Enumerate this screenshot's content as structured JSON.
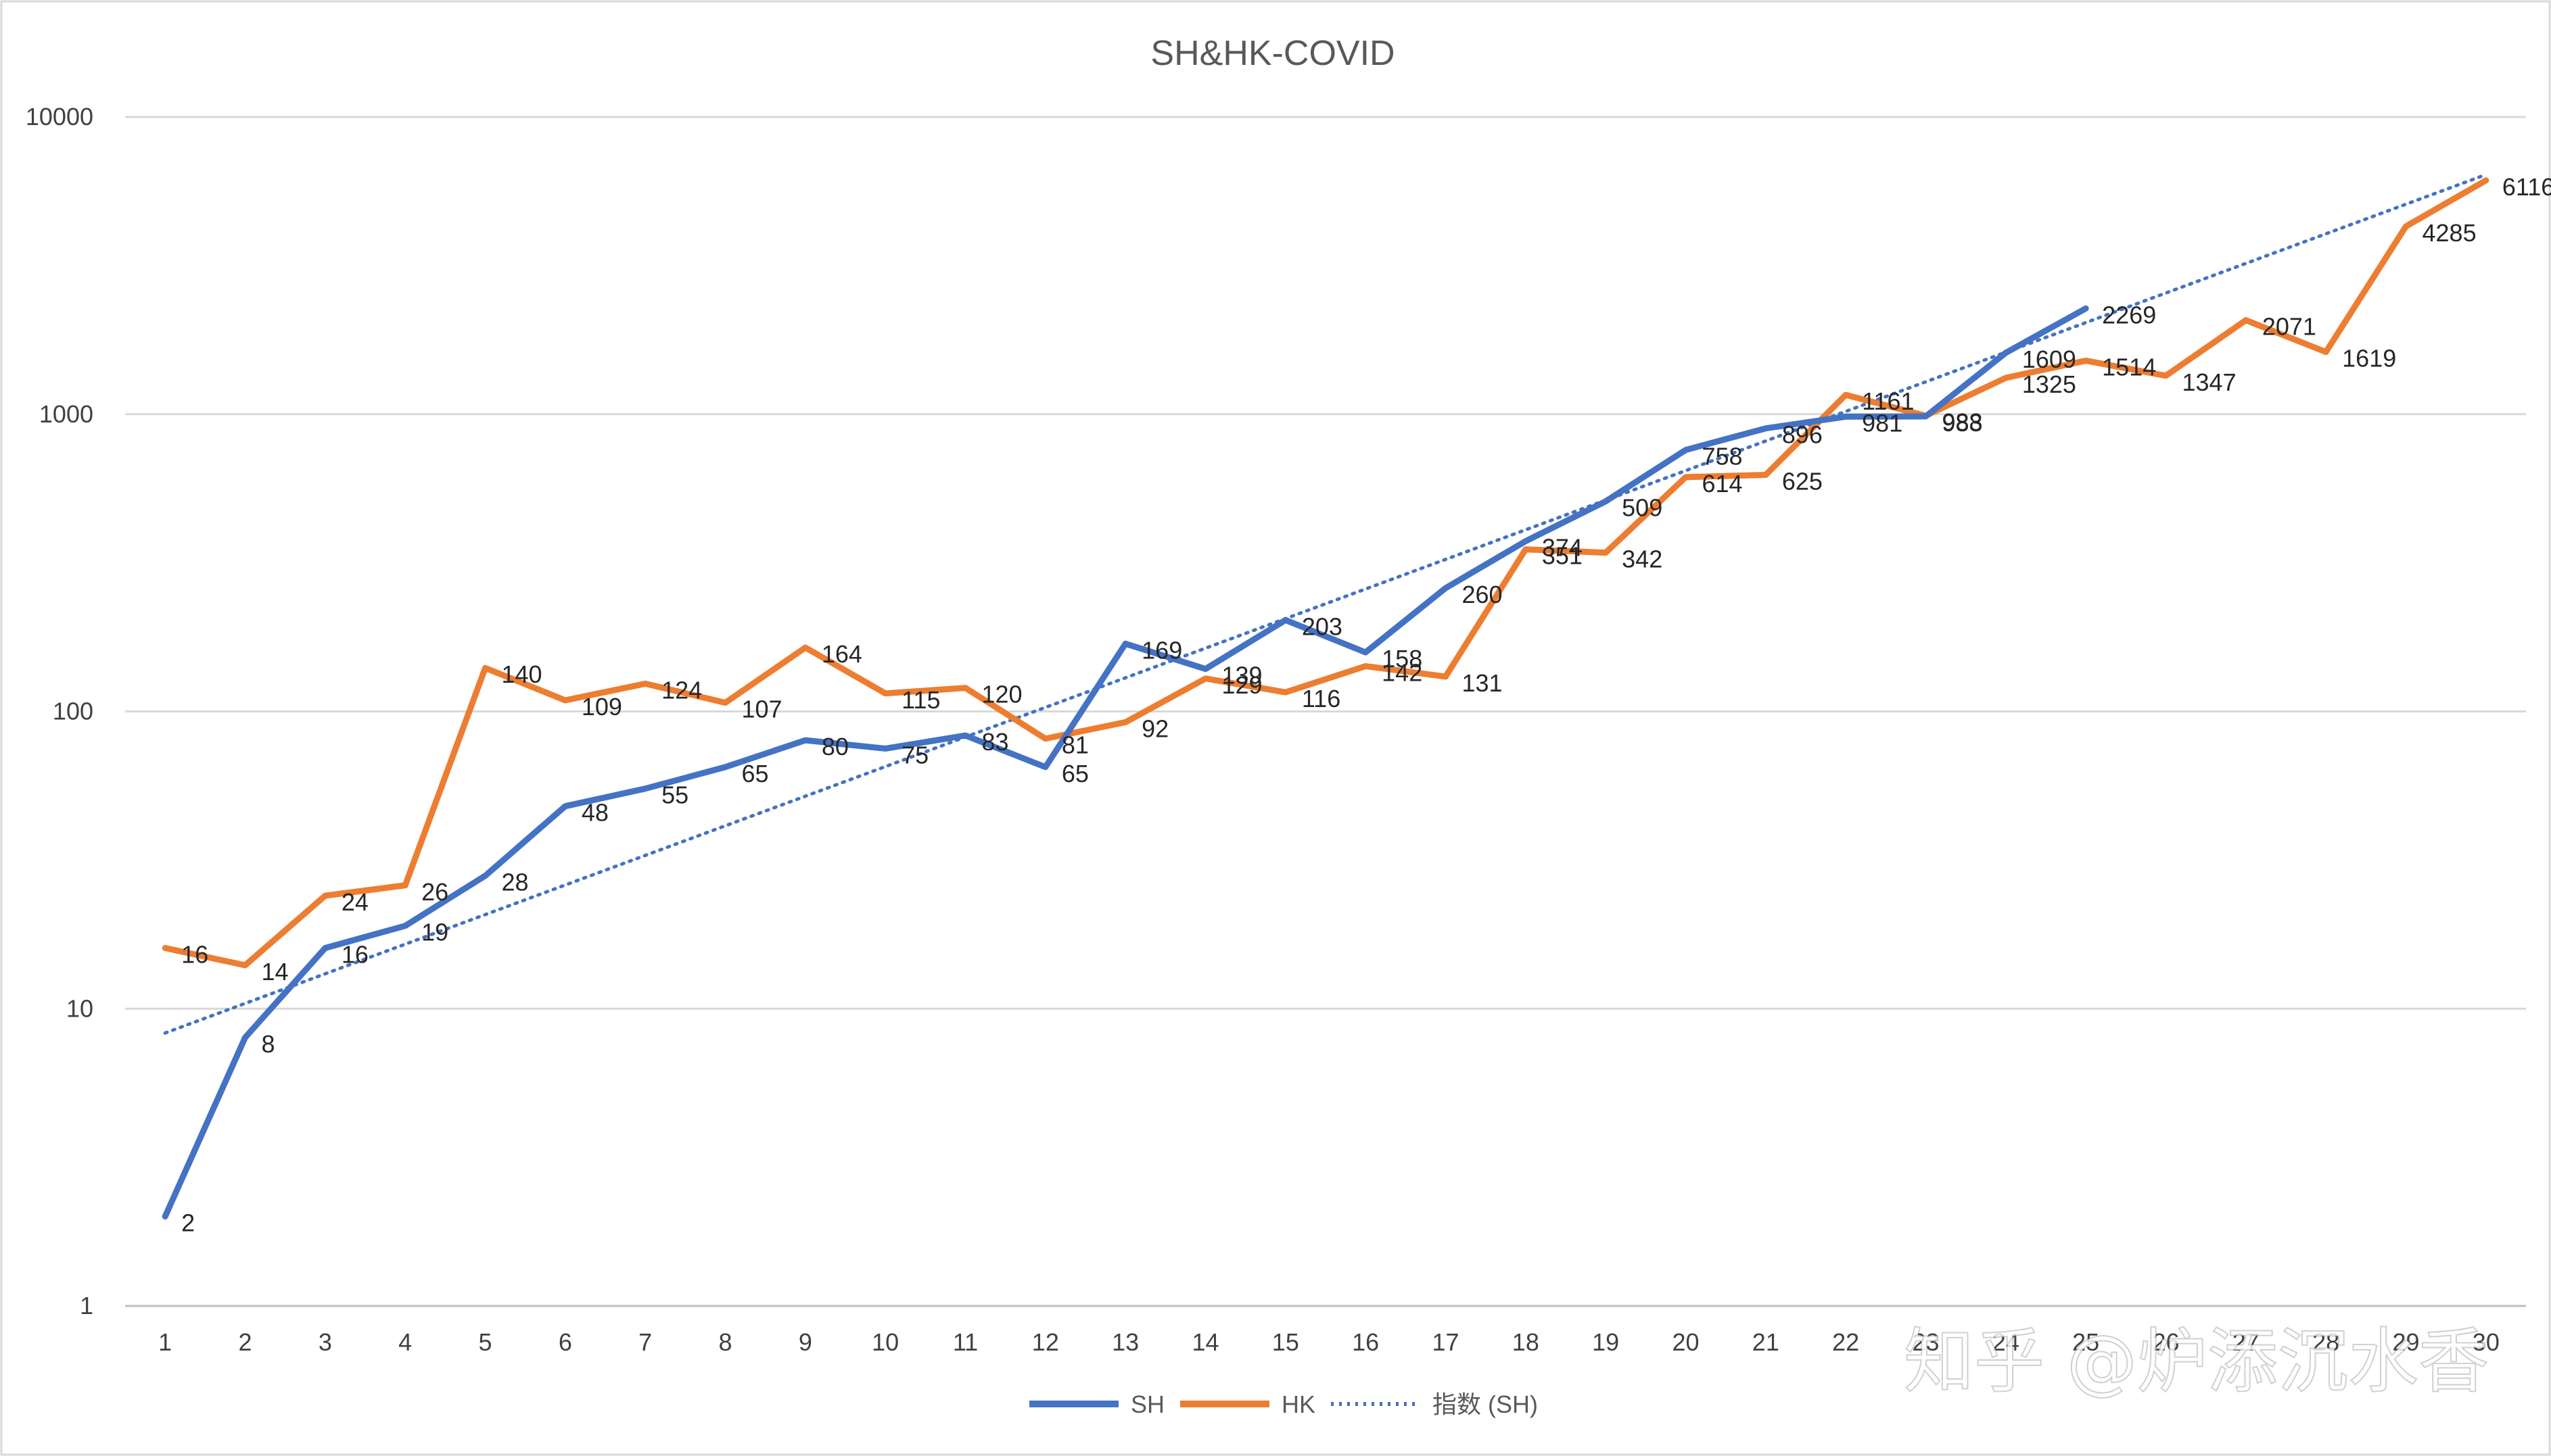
{
  "watermark": "知乎 @炉添沉水香",
  "chart_data": {
    "type": "line",
    "title": "SH&HK-COVID",
    "xlabel": "",
    "ylabel": "",
    "y_scale": "log",
    "ylim": [
      1,
      10000
    ],
    "y_ticks": [
      "1",
      "10",
      "100",
      "1000",
      "10000"
    ],
    "x": [
      1,
      2,
      3,
      4,
      5,
      6,
      7,
      8,
      9,
      10,
      11,
      12,
      13,
      14,
      15,
      16,
      17,
      18,
      19,
      20,
      21,
      22,
      23,
      24,
      25,
      26,
      27,
      28,
      29,
      30
    ],
    "grid": true,
    "legend_position": "bottom",
    "series": [
      {
        "name": "SH",
        "color": "#4472c4",
        "values": [
          2,
          8,
          16,
          19,
          28,
          48,
          55,
          65,
          80,
          75,
          83,
          65,
          169,
          139,
          203,
          158,
          260,
          374,
          509,
          758,
          896,
          981,
          983,
          1609,
          2269,
          null,
          null,
          null,
          null,
          null
        ]
      },
      {
        "name": "HK",
        "color": "#ed7d31",
        "values": [
          16,
          14,
          24,
          26,
          140,
          109,
          124,
          107,
          164,
          115,
          120,
          81,
          92,
          129,
          116,
          142,
          131,
          351,
          342,
          614,
          625,
          1161,
          988,
          1325,
          1514,
          1347,
          2071,
          1619,
          4285,
          6116
        ]
      }
    ],
    "trendline": {
      "name": "指数 (SH)",
      "type": "exponential",
      "of_series": "SH",
      "color": "#4472c4",
      "style": "dotted"
    }
  }
}
